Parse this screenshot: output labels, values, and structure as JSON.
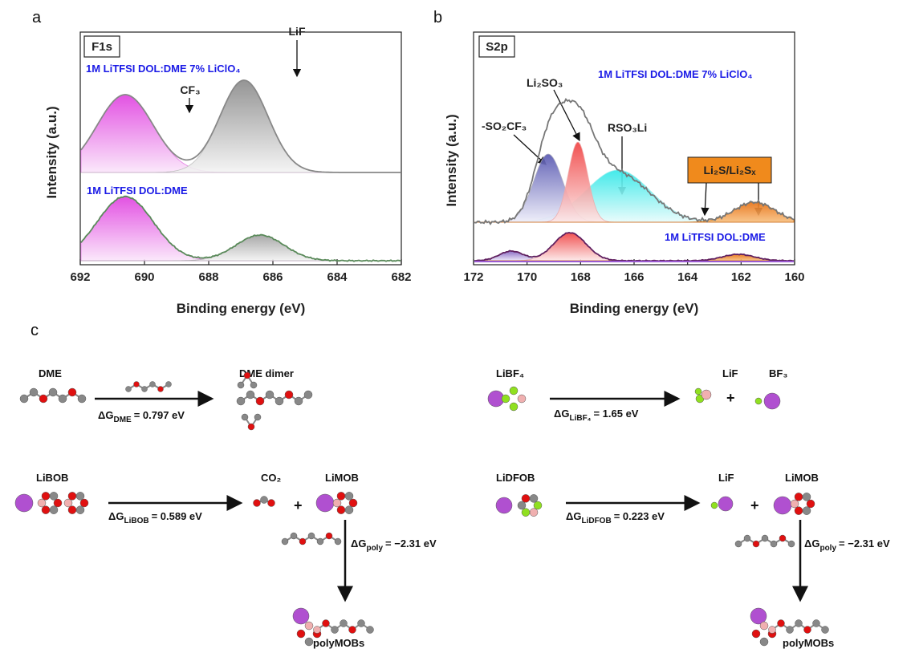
{
  "panel_a": {
    "label": "a",
    "tag": "F1s",
    "xlabel": "Binding energy (eV)",
    "ylabel": "Intensity (a.u.)",
    "xlim": [
      692,
      682
    ],
    "xticks": [
      692,
      690,
      688,
      686,
      684,
      682
    ],
    "sample_labels": [
      "1M LiTFSI DOL:DME 7% LiClO₄",
      "1M LiTFSI DOL:DME"
    ],
    "peak_labels": [
      "CF₃",
      "LiF"
    ]
  },
  "panel_b": {
    "label": "b",
    "tag": "S2p",
    "xlabel": "Binding energy (eV)",
    "ylabel": "Intensity (a.u.)",
    "xlim": [
      172,
      160
    ],
    "xticks": [
      172,
      170,
      168,
      166,
      164,
      162,
      160
    ],
    "sample_labels": [
      "1M LiTFSI DOL:DME 7% LiClO₄",
      "1M LiTFSI DOL:DME"
    ],
    "peak_labels": [
      "-SO₂CF₃",
      "Li₂SO₃",
      "RSO₃Li",
      "Li₂S/Li₂Sₓ"
    ]
  },
  "panel_c": {
    "label": "c",
    "reactions": [
      {
        "reactants": [
          "DME"
        ],
        "products": [
          "DME dimer"
        ],
        "energy": {
          "symbol": "ΔG",
          "sub": "DME",
          "value": "= 0.797 eV"
        }
      },
      {
        "reactants": [
          "LiBF₄"
        ],
        "products": [
          "LiF",
          "BF₃"
        ],
        "energy": {
          "symbol": "ΔG",
          "sub": "LiBF₄",
          "value": "= 1.65 eV"
        }
      },
      {
        "reactants": [
          "LiBOB"
        ],
        "products": [
          "CO₂",
          "LiMOB"
        ],
        "energy": {
          "symbol": "ΔG",
          "sub": "LiBOB",
          "value": "= 0.589 eV"
        }
      },
      {
        "reactants": [
          "LiDFOB"
        ],
        "products": [
          "LiF",
          "LiMOB"
        ],
        "energy": {
          "symbol": "ΔG",
          "sub": "LiDFOB",
          "value": "= 0.223 eV"
        }
      },
      {
        "reactants": [
          "LiMOB"
        ],
        "products": [
          "polyMOBs"
        ],
        "energy": {
          "symbol": "ΔG",
          "sub": "poly",
          "value": "= −2.31 eV"
        }
      },
      {
        "reactants": [
          "LiMOB"
        ],
        "products": [
          "polyMOBs"
        ],
        "energy": {
          "symbol": "ΔG",
          "sub": "poly",
          "value": "= −2.31 eV"
        }
      }
    ]
  }
}
